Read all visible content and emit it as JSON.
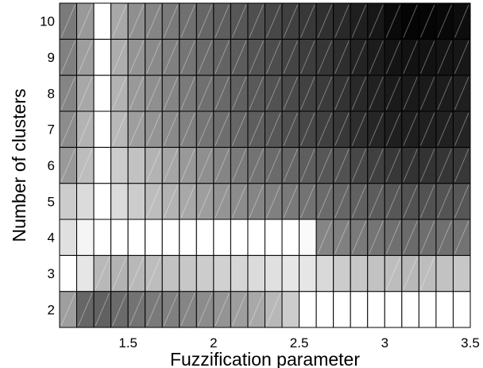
{
  "chart_data": {
    "type": "heatmap",
    "title": "",
    "xlabel": "Fuzzification parameter",
    "ylabel": "Number of clusters",
    "xlim": [
      1.1,
      3.5
    ],
    "ylim": [
      1.5,
      10.5
    ],
    "x_ticks": [
      "1.5",
      "2",
      "2.5",
      "3",
      "3.5"
    ],
    "x_tick_values": [
      1.5,
      2,
      2.5,
      3,
      3.5
    ],
    "y_ticks": [
      "2",
      "3",
      "4",
      "5",
      "6",
      "7",
      "8",
      "9",
      "10"
    ],
    "y_tick_values": [
      2,
      3,
      4,
      5,
      6,
      7,
      8,
      9,
      10
    ],
    "x": [
      1.1,
      1.2,
      1.3,
      1.4,
      1.5,
      1.6,
      1.7,
      1.8,
      1.9,
      2.0,
      2.1,
      2.2,
      2.3,
      2.4,
      2.5,
      2.6,
      2.7,
      2.8,
      2.9,
      3.0,
      3.1,
      3.2,
      3.3,
      3.4
    ],
    "y": [
      2,
      3,
      4,
      5,
      6,
      7,
      8,
      9,
      10
    ],
    "grayscale": "white = high, black = low",
    "hatched_rule": "cells with value below 0.75 carry a diagonal light hatch",
    "z": [
      [
        0.62,
        0.4,
        0.38,
        0.42,
        0.45,
        0.48,
        0.5,
        0.52,
        0.55,
        0.58,
        0.62,
        0.66,
        0.72,
        0.8,
        1.0,
        1.0,
        1.0,
        1.0,
        1.0,
        1.0,
        1.0,
        1.0,
        1.0,
        1.0
      ],
      [
        1.0,
        0.9,
        0.72,
        0.7,
        0.72,
        0.74,
        0.76,
        0.78,
        0.8,
        0.82,
        0.84,
        0.86,
        0.88,
        0.9,
        0.9,
        0.85,
        0.8,
        0.78,
        0.76,
        0.74,
        0.72,
        0.74,
        0.76,
        0.78
      ],
      [
        0.88,
        0.96,
        1.0,
        1.0,
        1.0,
        1.0,
        1.0,
        1.0,
        1.0,
        1.0,
        1.0,
        1.0,
        1.0,
        1.0,
        0.98,
        0.52,
        0.5,
        0.48,
        0.46,
        0.44,
        0.42,
        0.43,
        0.44,
        0.45
      ],
      [
        0.8,
        0.86,
        1.0,
        0.86,
        0.8,
        0.74,
        0.7,
        0.66,
        0.62,
        0.58,
        0.55,
        0.52,
        0.5,
        0.48,
        0.45,
        0.42,
        0.4,
        0.38,
        0.36,
        0.34,
        0.32,
        0.32,
        0.33,
        0.34
      ],
      [
        0.6,
        0.74,
        1.0,
        0.8,
        0.76,
        0.7,
        0.65,
        0.6,
        0.56,
        0.52,
        0.48,
        0.45,
        0.42,
        0.4,
        0.37,
        0.34,
        0.32,
        0.28,
        0.25,
        0.22,
        0.2,
        0.2,
        0.21,
        0.22
      ],
      [
        0.55,
        0.7,
        1.0,
        0.72,
        0.62,
        0.58,
        0.54,
        0.5,
        0.46,
        0.43,
        0.4,
        0.37,
        0.34,
        0.31,
        0.28,
        0.25,
        0.22,
        0.18,
        0.15,
        0.12,
        0.12,
        0.12,
        0.13,
        0.14
      ],
      [
        0.52,
        0.66,
        1.0,
        0.7,
        0.6,
        0.56,
        0.52,
        0.48,
        0.44,
        0.41,
        0.38,
        0.35,
        0.32,
        0.29,
        0.26,
        0.23,
        0.2,
        0.16,
        0.13,
        0.1,
        0.1,
        0.1,
        0.11,
        0.12
      ],
      [
        0.5,
        0.62,
        1.0,
        0.68,
        0.58,
        0.54,
        0.5,
        0.46,
        0.42,
        0.39,
        0.36,
        0.33,
        0.3,
        0.27,
        0.24,
        0.21,
        0.18,
        0.14,
        0.11,
        0.08,
        0.07,
        0.07,
        0.08,
        0.09
      ],
      [
        0.48,
        0.6,
        1.0,
        0.66,
        0.56,
        0.52,
        0.48,
        0.44,
        0.4,
        0.37,
        0.34,
        0.31,
        0.28,
        0.25,
        0.22,
        0.19,
        0.16,
        0.12,
        0.09,
        0.04,
        0.02,
        0.02,
        0.03,
        0.05
      ]
    ]
  }
}
